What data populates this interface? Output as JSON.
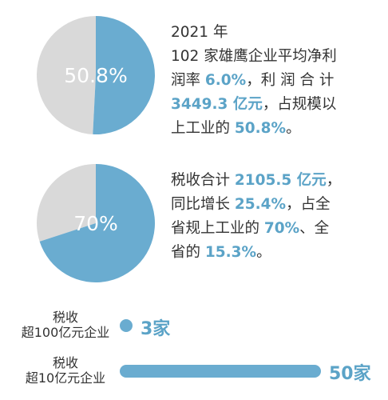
{
  "colors": {
    "accent": "#6aacd0",
    "remainder": "#d9d9d9",
    "highlight": "#5ba3c7"
  },
  "chart_data": [
    {
      "type": "pie",
      "label": "50.8%",
      "values": [
        50.8,
        49.2
      ]
    },
    {
      "type": "pie",
      "label": "70%",
      "values": [
        70,
        30
      ]
    },
    {
      "type": "bar",
      "orientation": "horizontal",
      "categories": [
        "税收超100亿元企业",
        "税收超10亿元企业"
      ],
      "category_lines": [
        [
          "税收",
          "超100亿元企业"
        ],
        [
          "税收",
          "超10亿元企业"
        ]
      ],
      "values": [
        3,
        50
      ],
      "data_labels": [
        "3家",
        "50家"
      ]
    }
  ],
  "text1": {
    "line1": "2021 年",
    "line2": "102 家雄鹰企业平均净利",
    "line3_a": "润率 ",
    "line3_b": "6.0%",
    "line3_c": "，利 润 合 计",
    "line4_a": "3449.3 亿元",
    "line4_b": "，占规模以",
    "line5_a": "上工业的 ",
    "line5_b": "50.8%",
    "line5_c": "。"
  },
  "text2": {
    "line1_a": "税收合计 ",
    "line1_b": "2105.5 亿元",
    "line1_c": "，",
    "line2_a": "同比增长 ",
    "line2_b": "25.4%",
    "line2_c": "，占全",
    "line3_a": "省规上工业的 ",
    "line3_b": "70%",
    "line3_c": "、全",
    "line4_a": "省的 ",
    "line4_b": "15.3%",
    "line4_c": "。"
  }
}
